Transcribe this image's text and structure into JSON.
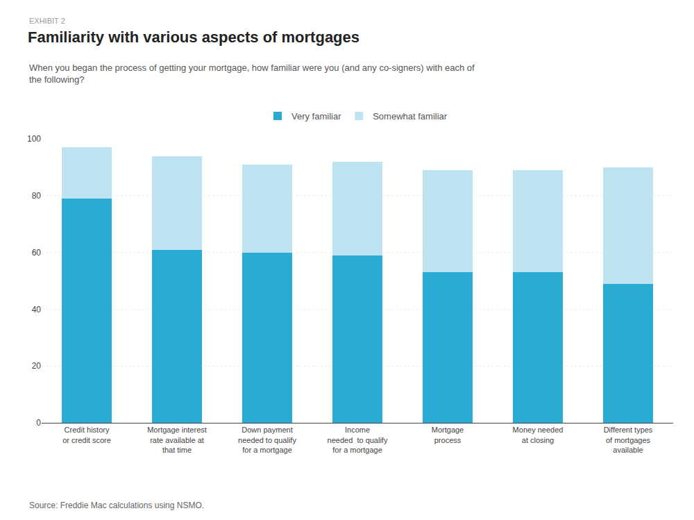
{
  "chart_data": {
    "type": "bar",
    "stacked": true,
    "title": "Familiarity with various aspects of mortgages",
    "subtitle": "When you began the process of getting your mortgage, how familiar were you (and any co-signers) with each of\nthe following?",
    "annotations": [
      "EXHIBIT 2",
      "Source: Freddie Mac calculations using NSMO."
    ],
    "categories": [
      "Credit history\nor credit score",
      "Mortgage interest\nrate available at\nthat time",
      "Down payment\nneeded to qualify\nfor a mortgage",
      "Income\nneeded  to qualify\nfor a mortgage",
      "Mortgage\nprocess",
      "Money needed\nat closing",
      "Different types\nof mortgages\navailable"
    ],
    "series": [
      {
        "name": "Very familiar",
        "color": "#29ABD4",
        "values": [
          79,
          61,
          60,
          59,
          53,
          53,
          49
        ]
      },
      {
        "name": "Somewhat familiar",
        "color": "#BDE4F0",
        "values": [
          18,
          33,
          31,
          33,
          36,
          36,
          41
        ]
      }
    ],
    "ylim": [
      0,
      100
    ],
    "yticks": [
      0,
      20,
      40,
      60,
      80,
      100
    ],
    "grid": true,
    "legend": "top"
  }
}
